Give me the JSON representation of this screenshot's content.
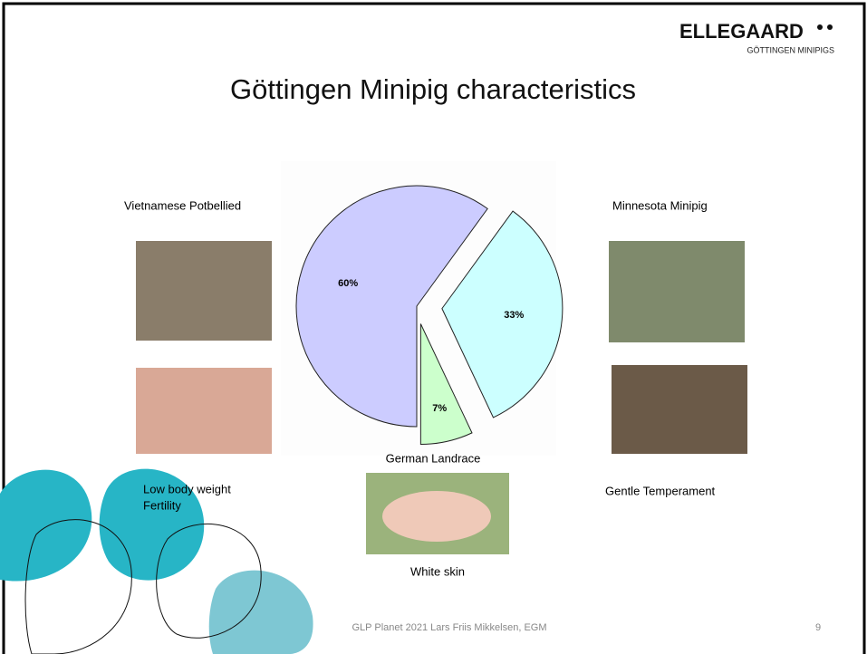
{
  "logo": {
    "name": "ELLEGAARD",
    "tagline": "GÖTTINGEN MINIPIGS"
  },
  "title": "Göttingen Minipig characteristics",
  "chart_data": {
    "type": "pie",
    "categories": [
      "Vietnamese Potbellied",
      "Minnesota Minipig",
      "German Landrace"
    ],
    "values": [
      60,
      33,
      7
    ],
    "value_labels": [
      "60%",
      "33%",
      "7%"
    ],
    "colors": [
      "#ccccff",
      "#ccffff",
      "#ccffcc"
    ]
  },
  "traits": {
    "left": [
      "Low body weight",
      "Fertility"
    ],
    "right": "Gentle Temperament",
    "bottom": "White skin"
  },
  "footer": "GLP Planet 2021 Lars Friis Mikkelsen, EGM",
  "page_number": "9"
}
